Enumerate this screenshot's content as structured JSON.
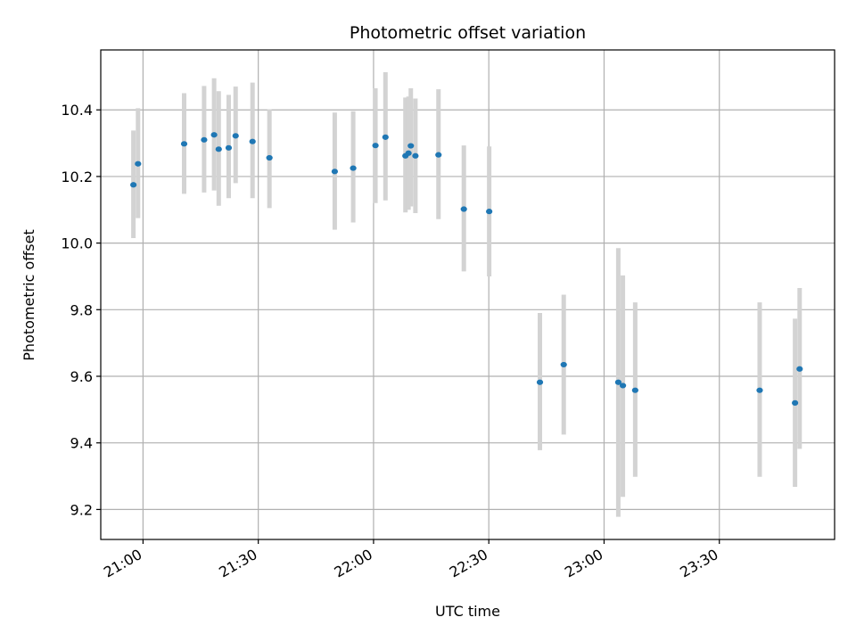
{
  "chart_data": {
    "type": "scatter",
    "title": "Photometric offset variation",
    "xlabel": "UTC time",
    "ylabel": "Photometric offset",
    "grid": true,
    "xlim": [
      "20:49",
      "24:00"
    ],
    "ylim": [
      9.11,
      10.58
    ],
    "x_ticks": [
      "21:00",
      "21:30",
      "22:00",
      "22:30",
      "23:00",
      "23:30"
    ],
    "y_ticks": [
      "9.2",
      "9.4",
      "9.6",
      "9.8",
      "10.0",
      "10.2",
      "10.4"
    ],
    "colors": {
      "point": "#1f77b4",
      "errorbar": "#d3d3d3",
      "grid": "#b0b0b0"
    },
    "points": [
      {
        "x": "20:57:30",
        "y": 10.175,
        "low": 10.015,
        "high": 10.338
      },
      {
        "x": "20:58:42",
        "y": 10.238,
        "low": 10.075,
        "high": 10.405
      },
      {
        "x": "21:10:42",
        "y": 10.298,
        "low": 10.148,
        "high": 10.45
      },
      {
        "x": "21:15:54",
        "y": 10.31,
        "low": 10.152,
        "high": 10.472
      },
      {
        "x": "21:18:30",
        "y": 10.325,
        "low": 10.158,
        "high": 10.495
      },
      {
        "x": "21:19:42",
        "y": 10.282,
        "low": 10.112,
        "high": 10.456
      },
      {
        "x": "21:22:18",
        "y": 10.286,
        "low": 10.135,
        "high": 10.445
      },
      {
        "x": "21:24:06",
        "y": 10.322,
        "low": 10.18,
        "high": 10.47
      },
      {
        "x": "21:28:30",
        "y": 10.305,
        "low": 10.135,
        "high": 10.482
      },
      {
        "x": "21:32:54",
        "y": 10.256,
        "low": 10.105,
        "high": 10.402
      },
      {
        "x": "21:49:54",
        "y": 10.215,
        "low": 10.04,
        "high": 10.392
      },
      {
        "x": "21:54:42",
        "y": 10.225,
        "low": 10.062,
        "high": 10.396
      },
      {
        "x": "22:00:30",
        "y": 10.293,
        "low": 10.12,
        "high": 10.465
      },
      {
        "x": "22:03:06",
        "y": 10.318,
        "low": 10.128,
        "high": 10.513
      },
      {
        "x": "22:08:18",
        "y": 10.262,
        "low": 10.092,
        "high": 10.437
      },
      {
        "x": "22:09:06",
        "y": 10.27,
        "low": 10.1,
        "high": 10.44
      },
      {
        "x": "22:09:42",
        "y": 10.292,
        "low": 10.11,
        "high": 10.465
      },
      {
        "x": "22:10:54",
        "y": 10.262,
        "low": 10.09,
        "high": 10.434
      },
      {
        "x": "22:16:54",
        "y": 10.265,
        "low": 10.072,
        "high": 10.462
      },
      {
        "x": "22:23:30",
        "y": 10.102,
        "low": 9.915,
        "high": 10.293
      },
      {
        "x": "22:30:06",
        "y": 10.095,
        "low": 9.9,
        "high": 10.29
      },
      {
        "x": "22:43:18",
        "y": 9.582,
        "low": 9.378,
        "high": 9.79
      },
      {
        "x": "22:49:30",
        "y": 9.635,
        "low": 9.425,
        "high": 9.845
      },
      {
        "x": "23:03:42",
        "y": 9.582,
        "low": 9.178,
        "high": 9.985
      },
      {
        "x": "23:04:54",
        "y": 9.572,
        "low": 9.238,
        "high": 9.903
      },
      {
        "x": "23:08:06",
        "y": 9.558,
        "low": 9.298,
        "high": 9.822
      },
      {
        "x": "23:40:30",
        "y": 9.558,
        "low": 9.298,
        "high": 9.822
      },
      {
        "x": "23:49:42",
        "y": 9.52,
        "low": 9.268,
        "high": 9.773
      },
      {
        "x": "23:50:54",
        "y": 9.622,
        "low": 9.382,
        "high": 9.865
      }
    ]
  }
}
